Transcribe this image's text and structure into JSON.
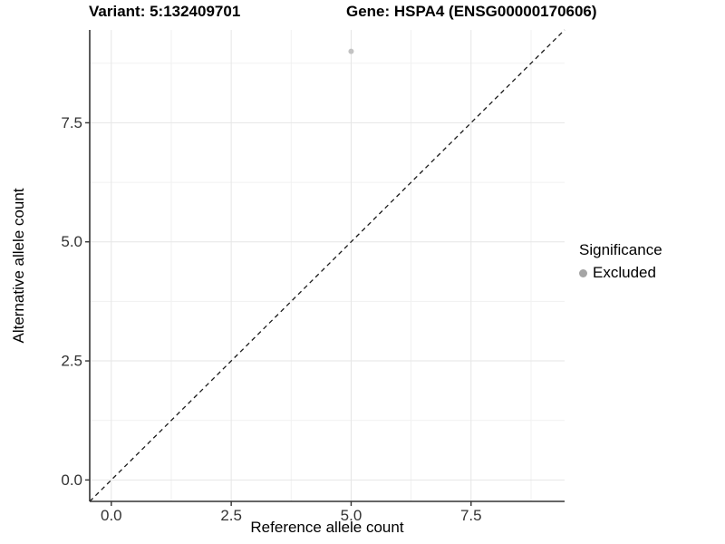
{
  "header": {
    "variant_title": "Variant: 5:132409701",
    "gene_title": "Gene: HSPA4 (ENSG00000170606)"
  },
  "axes": {
    "x_label": "Reference allele count",
    "y_label": "Alternative allele count"
  },
  "legend": {
    "title": "Significance",
    "items": [
      {
        "label": "Excluded",
        "color": "#a5a5a5"
      }
    ]
  },
  "chart_data": {
    "type": "scatter",
    "title": "Variant: 5:132409701 — Gene: HSPA4 (ENSG00000170606)",
    "xlabel": "Reference allele count",
    "ylabel": "Alternative allele count",
    "xlim": [
      -0.45,
      9.45
    ],
    "ylim": [
      -0.45,
      9.45
    ],
    "x_ticks": [
      0,
      2.5,
      5,
      7.5
    ],
    "y_ticks": [
      0,
      2.5,
      5,
      7.5
    ],
    "x_minor_ticks": [
      1.25,
      3.75,
      6.25,
      8.75
    ],
    "y_minor_ticks": [
      1.25,
      3.75,
      6.25,
      8.75
    ],
    "tick_decimals": 1,
    "grid": true,
    "legend_position": "right",
    "series": [
      {
        "name": "Excluded",
        "color": "#c3c3c3",
        "points": [
          {
            "x": 5,
            "y": 9
          }
        ]
      }
    ],
    "reference_line": {
      "slope": 1,
      "intercept": 0,
      "style": "dashed",
      "color": "#1a1a1a"
    }
  },
  "style": {
    "background": "#ffffff",
    "grid_major": "#e6e6e6",
    "grid_minor": "#f1f1f1",
    "axis_line": "#333333",
    "tick_color": "#333333",
    "tick_label_color": "#333333",
    "tick_font_size": 17
  }
}
